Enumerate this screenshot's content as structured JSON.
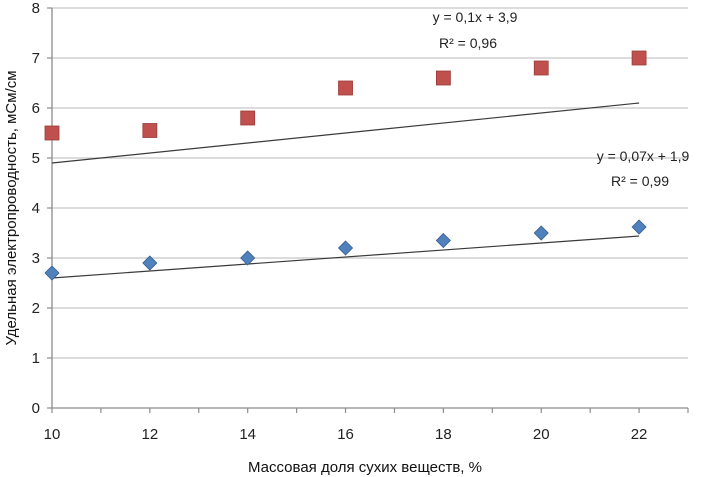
{
  "chart_data": {
    "type": "scatter",
    "title": "",
    "xlabel": "Массовая доля сухих веществ, %",
    "ylabel": "Удельная электропроводность, мСм/см",
    "xlim": [
      10,
      23
    ],
    "ylim": [
      0,
      8
    ],
    "x_ticks": [
      "10",
      "12",
      "14",
      "16",
      "18",
      "20",
      "22"
    ],
    "y_ticks": [
      "0",
      "1",
      "2",
      "3",
      "4",
      "5",
      "6",
      "7",
      "8"
    ],
    "grid": "horizontal",
    "x": [
      10,
      12,
      14,
      16,
      18,
      20,
      22
    ],
    "series": [
      {
        "marker": "square",
        "color": "#c0504d",
        "values": [
          5.5,
          5.55,
          5.8,
          6.4,
          6.6,
          6.8,
          7.0
        ],
        "trendline": {
          "slope": 0.1,
          "intercept": 3.9
        },
        "equation": "y = 0,1x + 3,9",
        "r2_label": "R² = 0,96"
      },
      {
        "marker": "diamond",
        "color": "#4f81bd",
        "values": [
          2.7,
          2.9,
          3.0,
          3.2,
          3.35,
          3.5,
          3.62
        ],
        "trendline": {
          "slope": 0.07,
          "intercept": 1.9
        },
        "equation": "y = 0,07x + 1,9",
        "r2_label": "R² = 0,99"
      }
    ]
  }
}
